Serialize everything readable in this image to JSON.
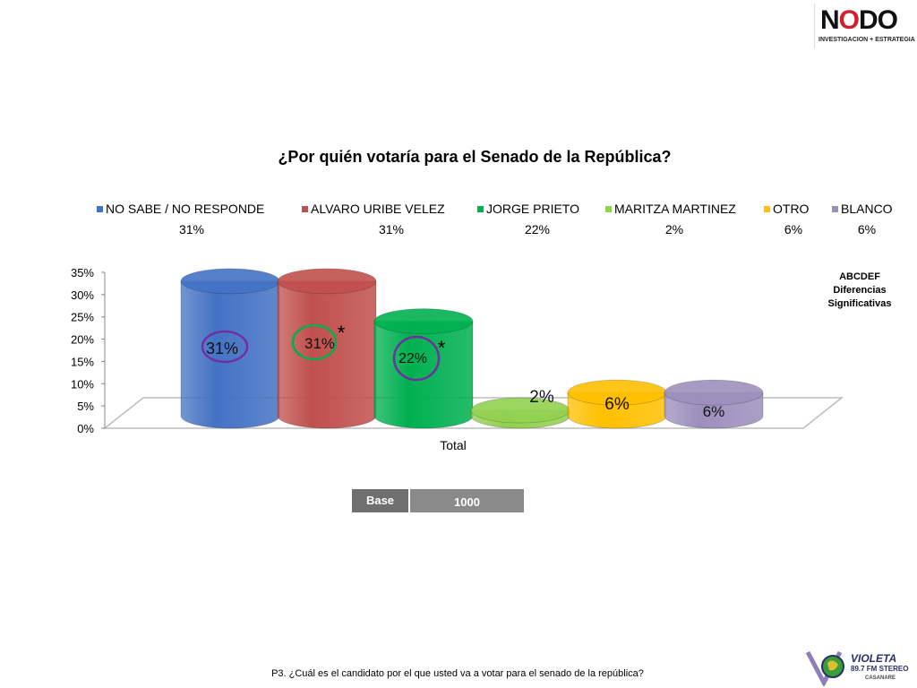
{
  "logo": {
    "name_part1": "N",
    "name_part2": "O",
    "name_part3": "DO",
    "tagline": "INVESTIGACION + ESTRATEGIA"
  },
  "chart_data": {
    "type": "bar",
    "title": "¿Por quién votaría para el Senado de la República?",
    "categories": [
      "Total"
    ],
    "xlabel": "Total",
    "ylabel": "",
    "ylim": [
      0,
      35
    ],
    "yticks": [
      "0%",
      "5%",
      "10%",
      "15%",
      "20%",
      "25%",
      "30%",
      "35%"
    ],
    "legend_position": "top",
    "series": [
      {
        "name": "NO SABE / NO RESPONDE",
        "values": [
          31
        ],
        "label": "31%",
        "color": "#4472c4"
      },
      {
        "name": "ALVARO URIBE VELEZ",
        "values": [
          31
        ],
        "label": "31%",
        "color": "#c0504d"
      },
      {
        "name": "JORGE PRIETO",
        "values": [
          22
        ],
        "label": "22%",
        "color": "#00b050"
      },
      {
        "name": "MARITZA MARTINEZ",
        "values": [
          2
        ],
        "label": "2%",
        "color": "#92d050"
      },
      {
        "name": "OTRO",
        "values": [
          6
        ],
        "label": "6%",
        "color": "#ffc000"
      },
      {
        "name": "BLANCO",
        "values": [
          6
        ],
        "label": "6%",
        "color": "#9d8fbd"
      }
    ],
    "annotations": [
      "*",
      "*"
    ],
    "significance_note": [
      "ABCDEF",
      "Diferencias",
      "Significativas"
    ]
  },
  "base": {
    "label": "Base",
    "value": "1000"
  },
  "footnote": "P3. ¿Cuál es el candidato por el que usted va a votar para el senado de la república?",
  "radio": {
    "name": "VIOLETA",
    "frequency": "89.7 FM  STEREO",
    "city": "CASANARE"
  }
}
